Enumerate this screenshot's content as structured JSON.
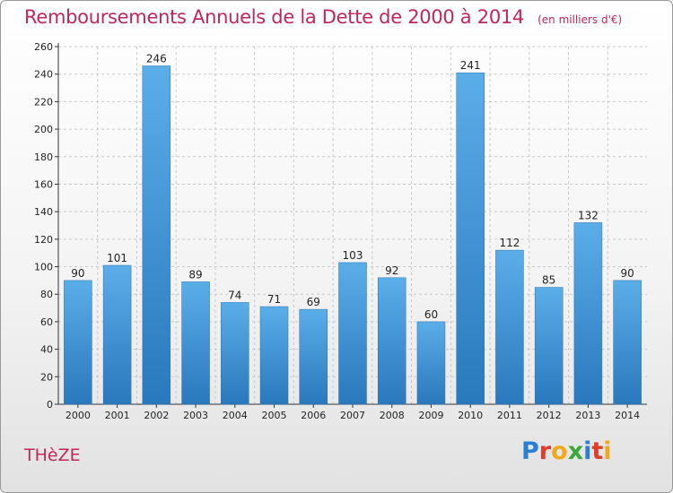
{
  "header": {
    "title": "Remboursements Annuels de la Dette de 2000 à 2014",
    "subtitle": "(en milliers d'€)"
  },
  "footer": {
    "commune": "THèZE",
    "logo": "Proxiti",
    "logo_colors": [
      "#2a7fd4",
      "#e23c2a",
      "#f2a81a",
      "#3da83a",
      "#2a7fd4",
      "#e23c2a",
      "#f2a81a"
    ]
  },
  "chart_data": {
    "type": "bar",
    "categories": [
      "2000",
      "2001",
      "2002",
      "2003",
      "2004",
      "2005",
      "2006",
      "2007",
      "2008",
      "2009",
      "2010",
      "2011",
      "2012",
      "2013",
      "2014"
    ],
    "values": [
      90,
      101,
      246,
      89,
      74,
      71,
      69,
      103,
      92,
      60,
      241,
      112,
      85,
      132,
      90
    ],
    "title": "Remboursements Annuels de la Dette de 2000 à 2014",
    "ylim": [
      0,
      260
    ],
    "yticks": [
      0,
      20,
      40,
      60,
      80,
      100,
      120,
      140,
      160,
      180,
      200,
      220,
      240,
      260
    ],
    "grid": true,
    "bar_color": "#3b94dc"
  }
}
